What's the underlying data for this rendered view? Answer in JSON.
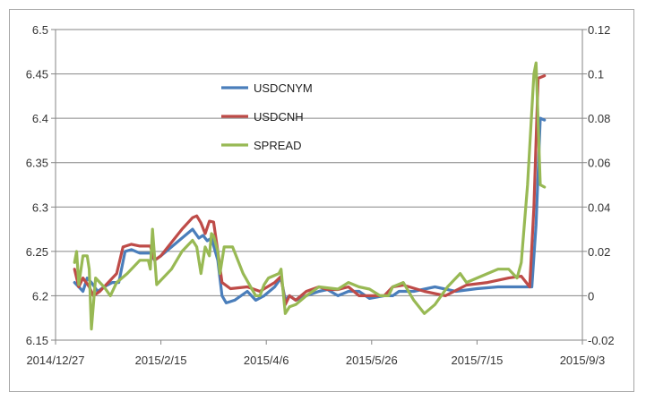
{
  "chart_data": {
    "type": "line",
    "x_axis": {
      "type": "date",
      "ticks": [
        "2014/12/27",
        "2015/2/15",
        "2015/4/6",
        "2015/5/26",
        "2015/7/15",
        "2015/9/3"
      ],
      "range": [
        "2014/12/27",
        "2015/9/3"
      ]
    },
    "y_left": {
      "ticks": [
        "6.15",
        "6.2",
        "6.25",
        "6.3",
        "6.35",
        "6.4",
        "6.45",
        "6.5"
      ],
      "range": [
        6.15,
        6.5
      ]
    },
    "y_right": {
      "ticks": [
        "-0.02",
        "0",
        "0.02",
        "0.04",
        "0.06",
        "0.08",
        "0.1",
        "0.12"
      ],
      "range": [
        -0.02,
        0.12
      ]
    },
    "grid": "horizontal",
    "legend_position": "center-left, inside plot",
    "series": [
      {
        "name": "USDCNYM",
        "axis": "left",
        "color": "#4a7ebb",
        "points": [
          [
            "2015/1/5",
            6.215
          ],
          [
            "2015/1/7",
            6.21
          ],
          [
            "2015/1/9",
            6.205
          ],
          [
            "2015/1/11",
            6.22
          ],
          [
            "2015/1/13",
            6.215
          ],
          [
            "2015/1/16",
            6.205
          ],
          [
            "2015/1/19",
            6.21
          ],
          [
            "2015/1/23",
            6.215
          ],
          [
            "2015/1/26",
            6.215
          ],
          [
            "2015/1/29",
            6.25
          ],
          [
            "2015/2/1",
            6.252
          ],
          [
            "2015/2/5",
            6.248
          ],
          [
            "2015/2/10",
            6.248
          ],
          [
            "2015/2/12",
            6.24
          ],
          [
            "2015/2/15",
            6.245
          ],
          [
            "2015/2/20",
            6.255
          ],
          [
            "2015/2/25",
            6.265
          ],
          [
            "2015/3/2",
            6.275
          ],
          [
            "2015/3/5",
            6.265
          ],
          [
            "2015/3/7",
            6.268
          ],
          [
            "2015/3/9",
            6.262
          ],
          [
            "2015/3/11",
            6.265
          ],
          [
            "2015/3/14",
            6.24
          ],
          [
            "2015/3/16",
            6.2
          ],
          [
            "2015/3/18",
            6.192
          ],
          [
            "2015/3/22",
            6.195
          ],
          [
            "2015/3/28",
            6.205
          ],
          [
            "2015/4/1",
            6.195
          ],
          [
            "2015/4/5",
            6.2
          ],
          [
            "2015/4/10",
            6.21
          ],
          [
            "2015/4/13",
            6.22
          ],
          [
            "2015/4/15",
            6.195
          ],
          [
            "2015/4/17",
            6.2
          ],
          [
            "2015/4/20",
            6.195
          ],
          [
            "2015/4/25",
            6.2
          ],
          [
            "2015/5/1",
            6.205
          ],
          [
            "2015/5/5",
            6.207
          ],
          [
            "2015/5/10",
            6.2
          ],
          [
            "2015/5/15",
            6.205
          ],
          [
            "2015/5/20",
            6.205
          ],
          [
            "2015/5/25",
            6.197
          ],
          [
            "2015/6/1",
            6.2
          ],
          [
            "2015/6/5",
            6.2
          ],
          [
            "2015/6/8",
            6.205
          ],
          [
            "2015/6/15",
            6.205
          ],
          [
            "2015/6/25",
            6.21
          ],
          [
            "2015/7/5",
            6.205
          ],
          [
            "2015/7/15",
            6.208
          ],
          [
            "2015/7/25",
            6.21
          ],
          [
            "2015/8/5",
            6.21
          ],
          [
            "2015/8/10",
            6.21
          ],
          [
            "2015/8/12",
            6.28
          ],
          [
            "2015/8/14",
            6.4
          ],
          [
            "2015/8/16",
            6.398
          ]
        ]
      },
      {
        "name": "USDCNH",
        "axis": "left",
        "color": "#be4b48",
        "points": [
          [
            "2015/1/5",
            6.23
          ],
          [
            "2015/1/7",
            6.21
          ],
          [
            "2015/1/9",
            6.22
          ],
          [
            "2015/1/12",
            6.21
          ],
          [
            "2015/1/14",
            6.2
          ],
          [
            "2015/1/17",
            6.205
          ],
          [
            "2015/1/21",
            6.215
          ],
          [
            "2015/1/25",
            6.225
          ],
          [
            "2015/1/28",
            6.255
          ],
          [
            "2015/2/1",
            6.258
          ],
          [
            "2015/2/5",
            6.256
          ],
          [
            "2015/2/10",
            6.256
          ],
          [
            "2015/2/12",
            6.24
          ],
          [
            "2015/2/15",
            6.245
          ],
          [
            "2015/2/20",
            6.26
          ],
          [
            "2015/2/25",
            6.275
          ],
          [
            "2015/3/2",
            6.288
          ],
          [
            "2015/3/4",
            6.29
          ],
          [
            "2015/3/6",
            6.282
          ],
          [
            "2015/3/8",
            6.27
          ],
          [
            "2015/3/10",
            6.284
          ],
          [
            "2015/3/12",
            6.283
          ],
          [
            "2015/3/14",
            6.25
          ],
          [
            "2015/3/16",
            6.215
          ],
          [
            "2015/3/20",
            6.208
          ],
          [
            "2015/3/28",
            6.21
          ],
          [
            "2015/4/3",
            6.205
          ],
          [
            "2015/4/10",
            6.215
          ],
          [
            "2015/4/13",
            6.222
          ],
          [
            "2015/4/15",
            6.19
          ],
          [
            "2015/4/17",
            6.2
          ],
          [
            "2015/4/20",
            6.195
          ],
          [
            "2015/4/25",
            6.205
          ],
          [
            "2015/5/1",
            6.21
          ],
          [
            "2015/5/5",
            6.207
          ],
          [
            "2015/5/10",
            6.207
          ],
          [
            "2015/5/15",
            6.21
          ],
          [
            "2015/5/20",
            6.2
          ],
          [
            "2015/5/25",
            6.2
          ],
          [
            "2015/6/1",
            6.2
          ],
          [
            "2015/6/5",
            6.21
          ],
          [
            "2015/6/10",
            6.212
          ],
          [
            "2015/6/20",
            6.205
          ],
          [
            "2015/6/30",
            6.2
          ],
          [
            "2015/7/10",
            6.212
          ],
          [
            "2015/7/20",
            6.215
          ],
          [
            "2015/7/30",
            6.22
          ],
          [
            "2015/8/5",
            6.222
          ],
          [
            "2015/8/9",
            6.21
          ],
          [
            "2015/8/11",
            6.3
          ],
          [
            "2015/8/13",
            6.445
          ],
          [
            "2015/8/16",
            6.448
          ]
        ]
      },
      {
        "name": "SPREAD",
        "axis": "right",
        "color": "#98b954",
        "points": [
          [
            "2015/1/5",
            0.015
          ],
          [
            "2015/1/6",
            0.02
          ],
          [
            "2015/1/7",
            0.005
          ],
          [
            "2015/1/9",
            0.018
          ],
          [
            "2015/1/11",
            0.018
          ],
          [
            "2015/1/12",
            0.012
          ],
          [
            "2015/1/13",
            -0.015
          ],
          [
            "2015/1/15",
            0.008
          ],
          [
            "2015/1/19",
            0.004
          ],
          [
            "2015/1/22",
            0.0
          ],
          [
            "2015/1/25",
            0.006
          ],
          [
            "2015/1/30",
            0.01
          ],
          [
            "2015/2/5",
            0.016
          ],
          [
            "2015/2/9",
            0.016
          ],
          [
            "2015/2/10",
            0.012
          ],
          [
            "2015/2/11",
            0.03
          ],
          [
            "2015/2/13",
            0.005
          ],
          [
            "2015/2/20",
            0.012
          ],
          [
            "2015/2/25",
            0.02
          ],
          [
            "2015/3/2",
            0.025
          ],
          [
            "2015/3/4",
            0.022
          ],
          [
            "2015/3/6",
            0.01
          ],
          [
            "2015/3/8",
            0.022
          ],
          [
            "2015/3/10",
            0.018
          ],
          [
            "2015/3/11",
            0.028
          ],
          [
            "2015/3/12",
            0.027
          ],
          [
            "2015/3/14",
            0.02
          ],
          [
            "2015/3/15",
            0.01
          ],
          [
            "2015/3/17",
            0.022
          ],
          [
            "2015/3/21",
            0.022
          ],
          [
            "2015/3/26",
            0.01
          ],
          [
            "2015/4/1",
            0.0
          ],
          [
            "2015/4/3",
            0.0
          ],
          [
            "2015/4/5",
            0.005
          ],
          [
            "2015/4/7",
            0.008
          ],
          [
            "2015/4/12",
            0.01
          ],
          [
            "2015/4/13",
            0.012
          ],
          [
            "2015/4/14",
            0.002
          ],
          [
            "2015/4/15",
            -0.008
          ],
          [
            "2015/4/17",
            -0.005
          ],
          [
            "2015/4/20",
            -0.004
          ],
          [
            "2015/4/25",
            0.0
          ],
          [
            "2015/5/1",
            0.004
          ],
          [
            "2015/5/10",
            0.003
          ],
          [
            "2015/5/15",
            0.006
          ],
          [
            "2015/5/20",
            0.004
          ],
          [
            "2015/5/25",
            0.003
          ],
          [
            "2015/5/30",
            0.0
          ],
          [
            "2015/6/3",
            0.0
          ],
          [
            "2015/6/5",
            0.004
          ],
          [
            "2015/6/10",
            0.006
          ],
          [
            "2015/6/15",
            -0.002
          ],
          [
            "2015/6/20",
            -0.008
          ],
          [
            "2015/6/25",
            -0.004
          ],
          [
            "2015/7/1",
            0.004
          ],
          [
            "2015/7/7",
            0.01
          ],
          [
            "2015/7/10",
            0.006
          ],
          [
            "2015/7/15",
            0.008
          ],
          [
            "2015/7/20",
            0.01
          ],
          [
            "2015/7/25",
            0.012
          ],
          [
            "2015/7/30",
            0.012
          ],
          [
            "2015/8/3",
            0.008
          ],
          [
            "2015/8/5",
            0.015
          ],
          [
            "2015/8/8",
            0.05
          ],
          [
            "2015/8/11",
            0.1
          ],
          [
            "2015/8/12",
            0.105
          ],
          [
            "2015/8/14",
            0.05
          ],
          [
            "2015/8/16",
            0.049
          ]
        ]
      }
    ]
  }
}
